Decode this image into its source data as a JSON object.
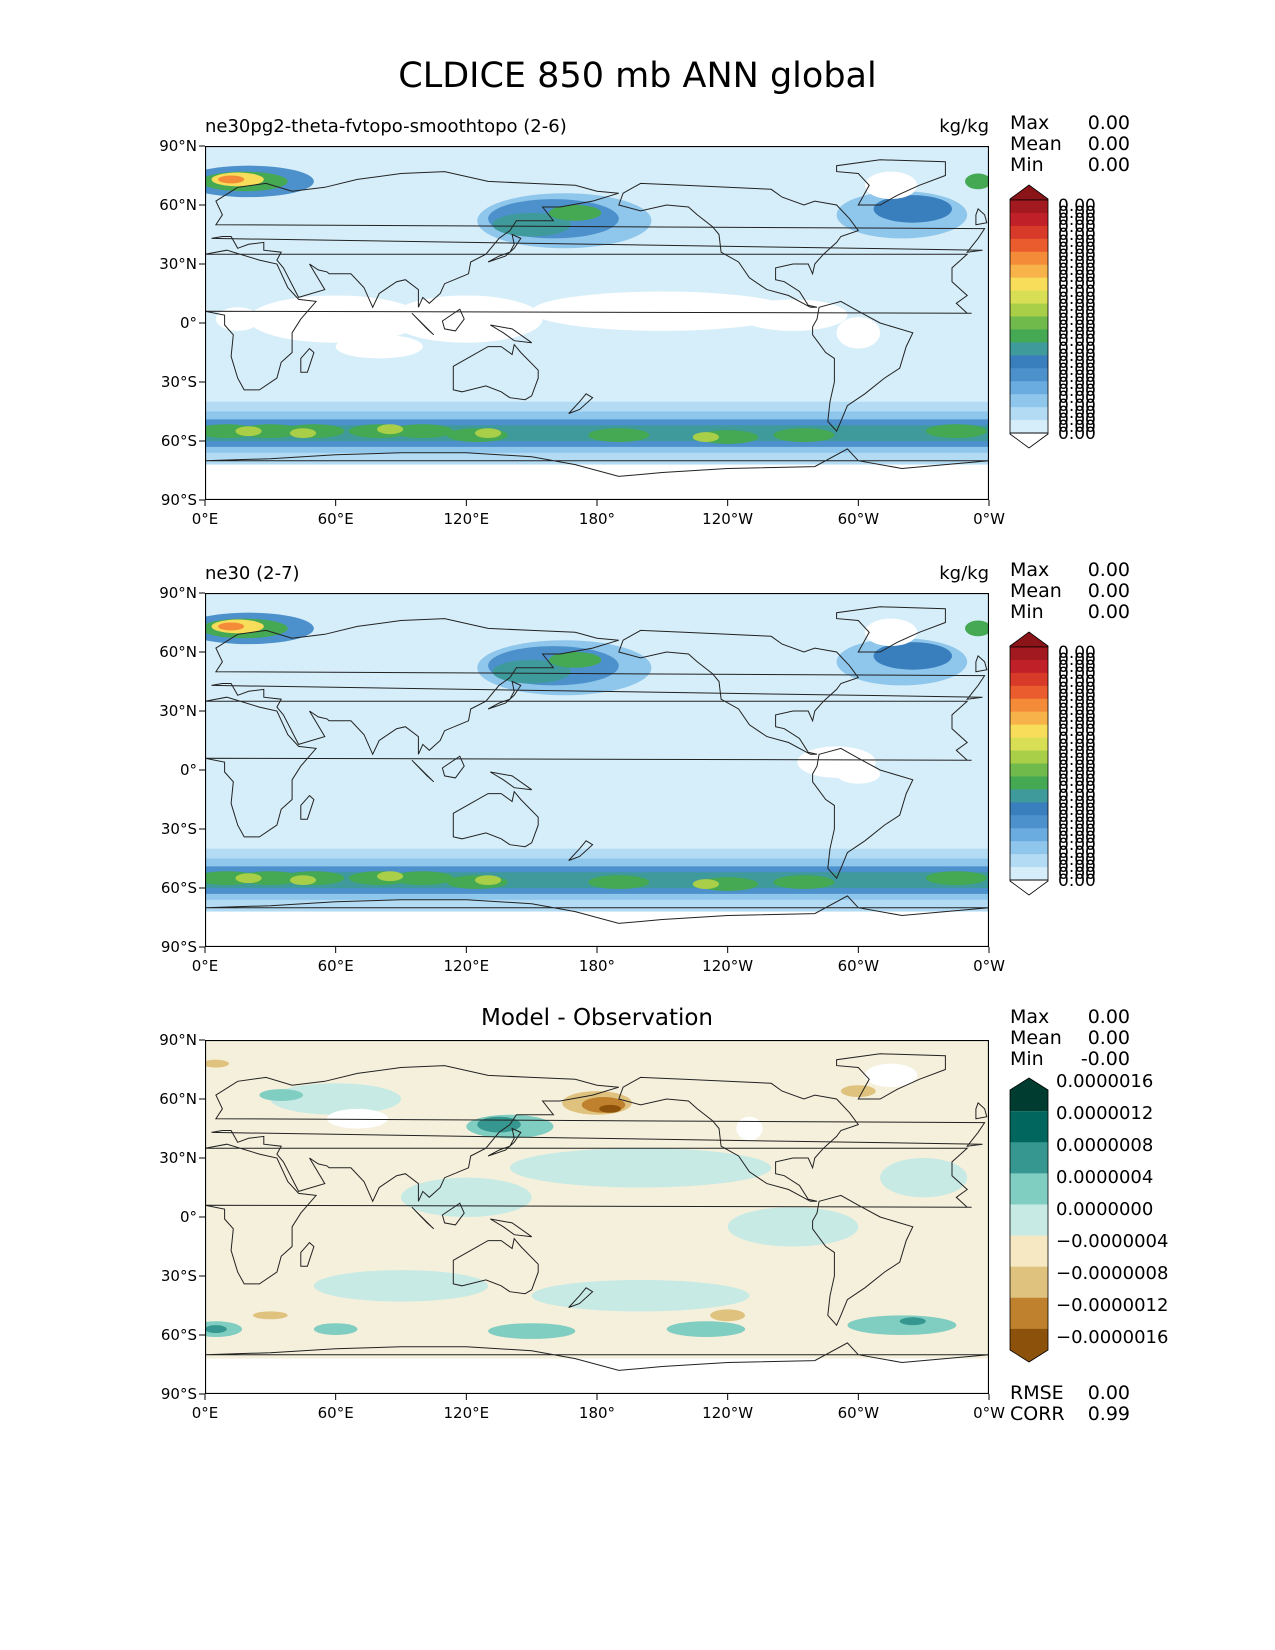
{
  "title": "CLDICE 850 mb ANN global",
  "panels": [
    {
      "left_title": "ne30pg2-theta-fvtopo-smoothtopo (2-6)",
      "right_title": "kg/kg",
      "stats": [
        {
          "label": "Max",
          "value": "0.00"
        },
        {
          "label": "Mean",
          "value": "0.00"
        },
        {
          "label": "Min",
          "value": "0.00"
        }
      ],
      "colorbar_labels": [
        "0.00",
        "0.00",
        "0.00",
        "0.00",
        "0.00",
        "0.00",
        "0.00",
        "0.00",
        "0.00",
        "0.00",
        "0.00",
        "0.00",
        "0.00",
        "0.00",
        "0.00",
        "0.00",
        "0.00",
        "0.00",
        "0.00",
        "0.00",
        "0.00",
        "0.00",
        "0.00",
        "0.00",
        "0.00",
        "0.00",
        "0.00",
        "0.00",
        "0.00",
        "0.00",
        "0.00",
        "0.00",
        "0.00"
      ]
    },
    {
      "left_title": "ne30 (2-7)",
      "right_title": "kg/kg",
      "stats": [
        {
          "label": "Max",
          "value": "0.00"
        },
        {
          "label": "Mean",
          "value": "0.00"
        },
        {
          "label": "Min",
          "value": "0.00"
        }
      ],
      "colorbar_labels": [
        "0.00",
        "0.00",
        "0.00",
        "0.00",
        "0.00",
        "0.00",
        "0.00",
        "0.00",
        "0.00",
        "0.00",
        "0.00",
        "0.00",
        "0.00",
        "0.00",
        "0.00",
        "0.00",
        "0.00",
        "0.00",
        "0.00",
        "0.00",
        "0.00",
        "0.00",
        "0.00",
        "0.00",
        "0.00",
        "0.00",
        "0.00",
        "0.00",
        "0.00",
        "0.00",
        "0.00",
        "0.00",
        "0.00"
      ]
    },
    {
      "center_title": "Model - Observation",
      "stats": [
        {
          "label": "Max",
          "value": "0.00"
        },
        {
          "label": "Mean",
          "value": "0.00"
        },
        {
          "label": "Min",
          "value": "-0.00"
        }
      ],
      "colorbar_labels": [
        "0.0000016",
        "0.0000012",
        "0.0000008",
        "0.0000004",
        "0.0000000",
        "−0.0000004",
        "−0.0000008",
        "−0.0000012",
        "−0.0000016"
      ],
      "metrics": [
        {
          "label": "RMSE",
          "value": "0.00"
        },
        {
          "label": "CORR",
          "value": "0.99"
        }
      ]
    }
  ],
  "y_ticks": [
    "90°N",
    "60°N",
    "30°N",
    "0°",
    "30°S",
    "60°S",
    "90°S"
  ],
  "x_ticks": [
    "0°E",
    "60°E",
    "120°E",
    "180°",
    "120°W",
    "60°W",
    "0°W"
  ],
  "colors": {
    "sequential": [
      "#ffffff",
      "#d6eef9",
      "#b3dcf4",
      "#8fc6ec",
      "#6aabe0",
      "#4d91cc",
      "#3a7fbd",
      "#3f9a9b",
      "#45a852",
      "#6fba4a",
      "#a9cf48",
      "#d8df55",
      "#f8dd5a",
      "#f8b24a",
      "#f48b38",
      "#ea5b2d",
      "#d73a29",
      "#c02128",
      "#a21a1f",
      "#8b1418"
    ],
    "diverging": [
      "#003c30",
      "#01665e",
      "#35978f",
      "#80cdc1",
      "#c7eae5",
      "#f5f0dc",
      "#f6e8c3",
      "#dfc27d",
      "#bf812d",
      "#8c510a",
      "#543005"
    ]
  }
}
